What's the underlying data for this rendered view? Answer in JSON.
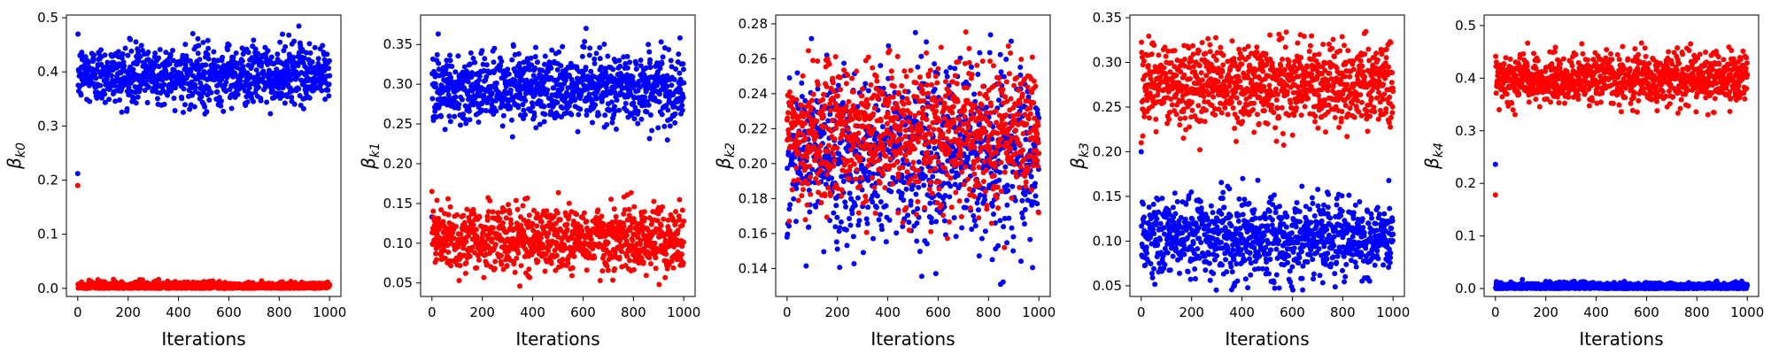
{
  "chart_data": [
    {
      "type": "scatter",
      "ylabel": "β",
      "ylabel_sub": "k0",
      "xlabel": "Iterations",
      "xlim": [
        -45,
        1045
      ],
      "ylim": [
        -0.015,
        0.505
      ],
      "xticks": [
        "0",
        "200",
        "400",
        "600",
        "800",
        "1000"
      ],
      "yticks": [
        "0.0",
        "0.1",
        "0.2",
        "0.3",
        "0.4",
        "0.5"
      ],
      "series": [
        {
          "color": "#0000ff",
          "first_point": 0.212,
          "center": 0.395,
          "spread": 0.027,
          "min": 0.32,
          "max": 0.485
        },
        {
          "color": "#ff0000",
          "first_point": 0.19,
          "center": 0.004,
          "spread": 0.004,
          "min": 0.0,
          "max": 0.027
        }
      ]
    },
    {
      "type": "scatter",
      "ylabel": "β",
      "ylabel_sub": "k1",
      "xlabel": "Iterations",
      "xlim": [
        -45,
        1045
      ],
      "ylim": [
        0.033,
        0.387
      ],
      "xticks": [
        "0",
        "200",
        "400",
        "600",
        "800",
        "1000"
      ],
      "yticks": [
        "0.05",
        "0.10",
        "0.15",
        "0.20",
        "0.25",
        "0.30",
        "0.35"
      ],
      "series": [
        {
          "color": "#0000ff",
          "first_point": 0.133,
          "center": 0.295,
          "spread": 0.022,
          "min": 0.2,
          "max": 0.375
        },
        {
          "color": "#ff0000",
          "first_point": 0.165,
          "center": 0.106,
          "spread": 0.02,
          "min": 0.045,
          "max": 0.165
        }
      ]
    },
    {
      "type": "scatter",
      "ylabel": "β",
      "ylabel_sub": "k2",
      "xlabel": "Iterations",
      "xlim": [
        -45,
        1045
      ],
      "ylim": [
        0.124,
        0.285
      ],
      "xticks": [
        "0",
        "200",
        "400",
        "600",
        "800",
        "1000"
      ],
      "yticks": [
        "0.14",
        "0.16",
        "0.18",
        "0.20",
        "0.22",
        "0.24",
        "0.26",
        "0.28"
      ],
      "series": [
        {
          "color": "#0000ff",
          "first_point": 0.158,
          "center": 0.205,
          "spread": 0.024,
          "min": 0.13,
          "max": 0.277
        },
        {
          "color": "#ff0000",
          "first_point": 0.225,
          "center": 0.218,
          "spread": 0.02,
          "min": 0.15,
          "max": 0.28
        }
      ]
    },
    {
      "type": "scatter",
      "ylabel": "β",
      "ylabel_sub": "k3",
      "xlabel": "Iterations",
      "xlim": [
        -45,
        1045
      ],
      "ylim": [
        0.038,
        0.353
      ],
      "xticks": [
        "0",
        "200",
        "400",
        "600",
        "800",
        "1000"
      ],
      "yticks": [
        "0.05",
        "0.10",
        "0.15",
        "0.20",
        "0.25",
        "0.30",
        "0.35"
      ],
      "series": [
        {
          "color": "#0000ff",
          "first_point": 0.2,
          "center": 0.104,
          "spread": 0.022,
          "min": 0.045,
          "max": 0.17
        },
        {
          "color": "#ff0000",
          "first_point": 0.21,
          "center": 0.276,
          "spread": 0.022,
          "min": 0.2,
          "max": 0.34
        }
      ]
    },
    {
      "type": "scatter",
      "ylabel": "β",
      "ylabel_sub": "k4",
      "xlabel": "Iterations",
      "xlim": [
        -45,
        1045
      ],
      "ylim": [
        -0.015,
        0.52
      ],
      "xticks": [
        "0",
        "200",
        "400",
        "600",
        "800",
        "1000"
      ],
      "yticks": [
        "0.0",
        "0.1",
        "0.2",
        "0.3",
        "0.4",
        "0.5"
      ],
      "series": [
        {
          "color": "#ff0000",
          "first_point": 0.178,
          "center": 0.4,
          "spread": 0.024,
          "min": 0.33,
          "max": 0.495
        },
        {
          "color": "#0000ff",
          "first_point": 0.236,
          "center": 0.004,
          "spread": 0.004,
          "min": 0.0,
          "max": 0.03
        }
      ]
    }
  ]
}
